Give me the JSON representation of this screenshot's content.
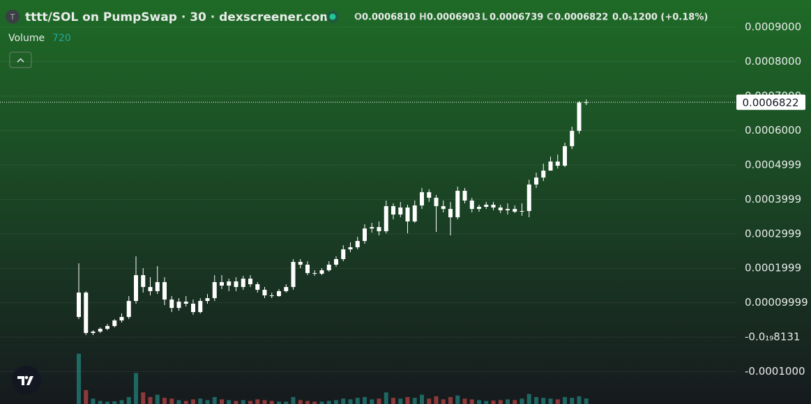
{
  "chart_data": {
    "type": "candlestick",
    "title": "tttt/SOL on PumpSwap · 30 · dexscreener.com",
    "legend": [
      {
        "label": "O",
        "value": "0.0006810"
      },
      {
        "label": "H",
        "value": "0.0006903"
      },
      {
        "label": "L",
        "value": "0.0006739"
      },
      {
        "label": "C",
        "value": "0.0006822"
      }
    ],
    "change": "0.0₅1200 (+0.18%)",
    "volume_label": "Volume",
    "volume_last": 720,
    "color": "#ffffff",
    "volume_colors": {
      "up": "#26a69a",
      "down": "#ef5350"
    },
    "grid": true,
    "ylim": [
      -0.000194,
      0.000979
    ],
    "yticks": [
      {
        "value": 0.0009,
        "label": "0.0009000"
      },
      {
        "value": 0.0008,
        "label": "0.0008000"
      },
      {
        "value": 0.0007,
        "label": "0.0007000"
      },
      {
        "value": 0.0006,
        "label": "0.0006000"
      },
      0.0004999,
      0.0003999,
      0.0002999,
      0.0001999,
      9.999e-05,
      {
        "value": -8.131e-20,
        "label": "-0.0₁₉8131"
      },
      {
        "value": -0.0001,
        "label": "-0.0001000"
      }
    ],
    "last_price": 0.0006822,
    "volume_ylim": [
      0,
      52200
    ],
    "open": [
      5.87e-05,
      0.0001295,
      1.21e-05,
      1.62e-05,
      2.43e-05,
      3.24e-05,
      4.86e-05,
      5.87e-05,
      0.0001052,
      0.0001801,
      0.0001457,
      0.0001336,
      0.0001599,
      0.0001093,
      8.5e-05,
      0.0001032,
      9.72e-05,
      7.29e-05,
      0.0001052,
      0.0001133,
      0.0001599,
      0.0001498,
      0.0001619,
      0.0001457,
      0.00017,
      0.0001538,
      0.0001376,
      0.0001214,
      0.0001194,
      0.0001336,
      0.0001457,
      0.0002186,
      0.0002105,
      0.0001862,
      0.0001842,
      0.0001943,
      0.0002105,
      0.0002267,
      0.000255,
      0.0002611,
      0.0002793,
      0.0003157,
      0.0003198,
      0.0003076,
      0.0003805,
      0.0003562,
      0.0003765,
      0.000336,
      0.0003825,
      0.000421,
      0.0004048,
      0.0003805,
      0.0003724,
      0.0003481,
      0.000425,
      0.0003967,
      0.0003724,
      0.0003785,
      0.0003846,
      0.0003765,
      0.0003684,
      0.0003724,
      0.0003643,
      0.0003663,
      0.0004433,
      0.0004635,
      0.0004837,
      0.00051,
      0.0004979,
      0.0005546,
      0.0005991,
      0.000681
    ],
    "high": [
      0.0002145,
      0.0001336,
      2.02e-05,
      2.83e-05,
      3.85e-05,
      5.26e-05,
      6.88e-05,
      0.0001194,
      0.0002348,
      0.0002004,
      0.0001741,
      0.0002064,
      0.0001741,
      0.0001194,
      0.0001133,
      0.0001194,
      0.0001093,
      0.0001133,
      0.0001255,
      0.0001801,
      0.0001801,
      0.00017,
      0.0001741,
      0.0001781,
      0.0001801,
      0.0001599,
      0.0001457,
      0.0001295,
      0.0001397,
      0.0001538,
      0.0002267,
      0.0002267,
      0.0002206,
      0.0001943,
      0.0002004,
      0.0002206,
      0.0002348,
      0.0002672,
      0.0002753,
      0.0002915,
      0.0003279,
      0.0003319,
      0.000336,
      0.0003967,
      0.0003886,
      0.0003927,
      0.0003846,
      0.0003967,
      0.0004331,
      0.0004291,
      0.0004129,
      0.0003967,
      0.0003927,
      0.0004372,
      0.0004331,
      0.0004048,
      0.0003846,
      0.0003927,
      0.0003927,
      0.0003846,
      0.0003886,
      0.0003825,
      0.0003886,
      0.0004574,
      0.0004777,
      0.000504,
      0.0005242,
      0.0005303,
      0.0005647,
      0.0006112,
      0.000685,
      0.0006903
    ],
    "low": [
      5.26e-05,
      6.1e-06,
      6.1e-06,
      1.21e-05,
      2.02e-05,
      2.83e-05,
      4.25e-05,
      5.26e-05,
      9.72e-05,
      0.0001295,
      0.0001214,
      0.0001255,
      9.31e-05,
      7.29e-05,
      7.69e-05,
      8.91e-05,
      6.48e-05,
      6.88e-05,
      9.72e-05,
      0.0001052,
      0.0001397,
      0.0001336,
      0.0001336,
      0.0001376,
      0.0001457,
      0.0001295,
      0.0001133,
      0.0001133,
      0.0001174,
      0.0001295,
      0.0001376,
      0.0002004,
      0.0001801,
      0.0001781,
      0.0001801,
      0.0001903,
      0.0002044,
      0.0002206,
      0.0002469,
      0.000255,
      0.0002712,
      0.0003036,
      0.0002955,
      0.0003016,
      0.0003421,
      0.0003481,
      0.0003016,
      0.0003319,
      0.0003724,
      0.0003927,
      0.0003056,
      0.0003623,
      0.0002955,
      0.0003421,
      0.0003886,
      0.0003623,
      0.0003643,
      0.0003724,
      0.0003684,
      0.0003603,
      0.0003562,
      0.0003603,
      0.0003522,
      0.0003481,
      0.0004331,
      0.0004534,
      0.0004837,
      0.0004898,
      0.0004939,
      0.0005465,
      0.000591,
      0.0006739
    ],
    "close": [
      0.0001295,
      1.21e-05,
      1.62e-05,
      2.43e-05,
      3.24e-05,
      4.86e-05,
      5.87e-05,
      0.0001052,
      0.0001801,
      0.0001457,
      0.0001336,
      0.0001599,
      0.0001093,
      8.5e-05,
      0.0001032,
      9.72e-05,
      7.29e-05,
      0.0001052,
      0.0001133,
      0.0001599,
      0.0001498,
      0.0001619,
      0.0001457,
      0.00017,
      0.0001538,
      0.0001376,
      0.0001214,
      0.0001194,
      0.0001336,
      0.0001457,
      0.0002186,
      0.0002105,
      0.0001862,
      0.0001842,
      0.0001943,
      0.0002105,
      0.0002267,
      0.000255,
      0.0002611,
      0.0002793,
      0.0003157,
      0.0003198,
      0.0003076,
      0.0003805,
      0.0003562,
      0.0003765,
      0.000336,
      0.0003825,
      0.000421,
      0.0004048,
      0.0003805,
      0.0003724,
      0.0003481,
      0.000425,
      0.0003967,
      0.0003724,
      0.0003785,
      0.0003846,
      0.0003765,
      0.0003684,
      0.0003724,
      0.0003643,
      0.0003663,
      0.0004433,
      0.0004635,
      0.0004837,
      0.00051,
      0.0004979,
      0.0005546,
      0.0005991,
      0.000681,
      0.0006822
    ],
    "volume": [
      6500,
      1800,
      700,
      400,
      300,
      350,
      500,
      900,
      4000,
      1500,
      900,
      1200,
      800,
      700,
      500,
      400,
      600,
      700,
      500,
      900,
      600,
      500,
      400,
      500,
      400,
      600,
      500,
      400,
      300,
      300,
      900,
      500,
      400,
      300,
      300,
      400,
      500,
      700,
      600,
      800,
      900,
      600,
      700,
      1500,
      800,
      700,
      900,
      800,
      1200,
      700,
      1000,
      600,
      900,
      1100,
      700,
      600,
      500,
      400,
      450,
      500,
      600,
      500,
      700,
      1300,
      900,
      800,
      700,
      600,
      900,
      800,
      1000,
      720
    ]
  }
}
